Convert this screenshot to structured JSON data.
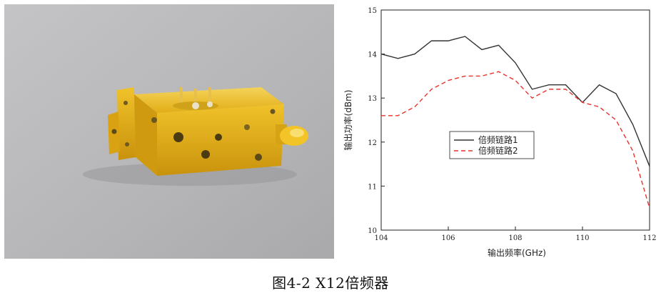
{
  "caption": "图4-2 X12倍频器",
  "colors": {
    "series1": "#333333",
    "series2": "#e8322b",
    "photo_bg": "#b8b8b8",
    "gold": "#e8b41a"
  },
  "photo": {
    "icon": "gold-multiplier-device-photo"
  },
  "chart_data": {
    "type": "line",
    "xlabel": "输出频率(GHz)",
    "ylabel": "输出功率(dBm)",
    "xlim": [
      104,
      112
    ],
    "ylim": [
      10,
      15
    ],
    "xticks": [
      104,
      106,
      108,
      110,
      112
    ],
    "yticks": [
      10,
      11,
      12,
      13,
      14,
      15
    ],
    "grid": false,
    "legend_position": "center-left",
    "series": [
      {
        "name": "倍频链路1",
        "style": "solid",
        "x": [
          104,
          104.5,
          105,
          105.5,
          106,
          106.5,
          107,
          107.5,
          108,
          108.5,
          109,
          109.5,
          110,
          110.5,
          111,
          111.5,
          112
        ],
        "y": [
          14.0,
          13.9,
          14.0,
          14.3,
          14.3,
          14.4,
          14.1,
          14.2,
          13.8,
          13.2,
          13.3,
          13.3,
          12.9,
          13.3,
          13.1,
          12.4,
          11.45
        ]
      },
      {
        "name": "倍频链路2",
        "style": "dashed",
        "x": [
          104,
          104.5,
          105,
          105.5,
          106,
          106.5,
          107,
          107.5,
          108,
          108.5,
          109,
          109.5,
          110,
          110.5,
          111,
          111.5,
          112
        ],
        "y": [
          12.6,
          12.6,
          12.8,
          13.2,
          13.4,
          13.5,
          13.5,
          13.6,
          13.4,
          13.0,
          13.2,
          13.2,
          12.9,
          12.8,
          12.5,
          11.8,
          10.5
        ]
      }
    ]
  }
}
